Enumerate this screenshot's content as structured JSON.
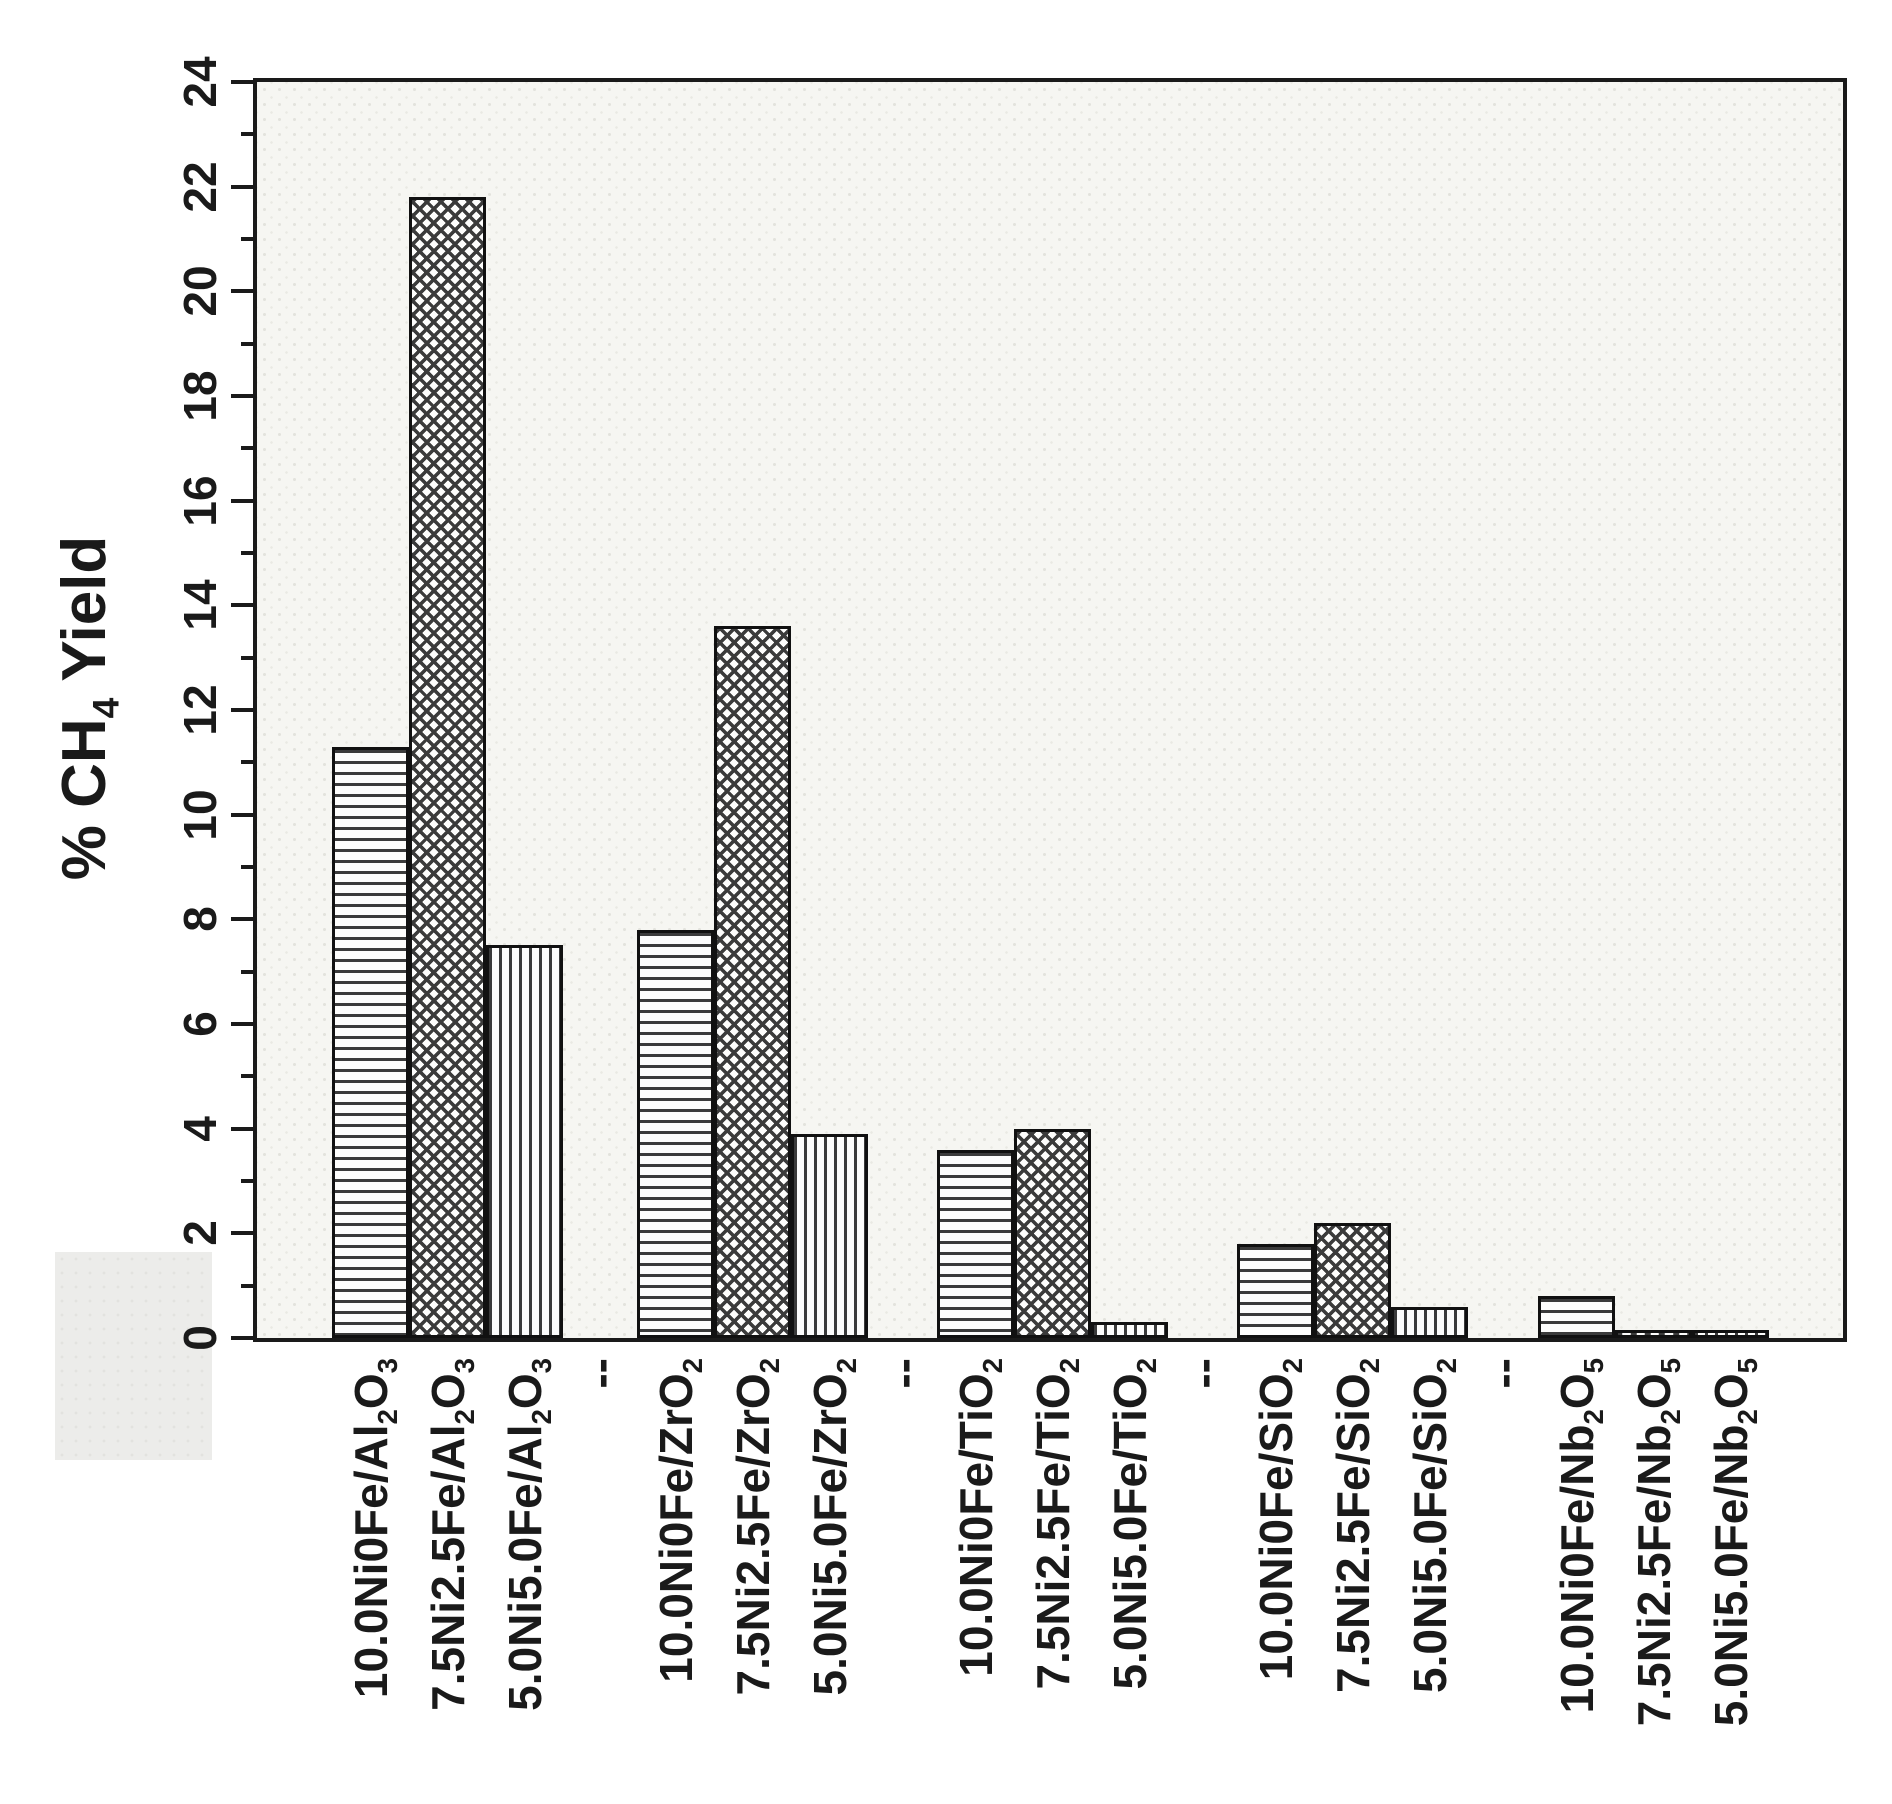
{
  "figure": {
    "background": "#ffffff",
    "plot_background": "#f6f6f2",
    "frame_color": "#1a1a1a",
    "bar_fill": "#fdfdfc",
    "hatch_color": "#3b3b3b"
  },
  "chart_data": {
    "type": "bar",
    "title": "",
    "ylabel": "% CH_4 Yield",
    "xlabel": "",
    "ylim": [
      0,
      24
    ],
    "ytick_step": 2,
    "minor_tick_step": 1,
    "grid": false,
    "legend": "none",
    "plot_style": "grouped bars, hatch-pattern filled, black frame on all four sides, rotated tick labels",
    "categories": [
      "Al_2O_3",
      "ZrO_2",
      "TiO_2",
      "SiO_2",
      "Nb_2O_5"
    ],
    "series": [
      {
        "name": "10.0Ni0Fe",
        "pattern": "horizontal-lines",
        "values": [
          11.3,
          7.8,
          3.6,
          1.8,
          0.8
        ]
      },
      {
        "name": "7.5Ni2.5Fe",
        "pattern": "crosshatch-checker",
        "values": [
          21.8,
          13.6,
          4.0,
          2.2,
          0.15
        ]
      },
      {
        "name": "5.0Ni5.0Fe",
        "pattern": "vertical-lines",
        "values": [
          7.5,
          3.9,
          0.3,
          0.6,
          0.15
        ]
      }
    ],
    "x_tick_labels": [
      "10.0Ni0Fe/Al_2O_3",
      "7.5Ni2.5Fe/Al_2O_3",
      "5.0Ni5.0Fe/Al_2O_3",
      "10.0Ni0Fe/ZrO_2",
      "7.5Ni2.5Fe/ZrO_2",
      "5.0Ni5.0Fe/ZrO_2",
      "10.0Ni0Fe/TiO_2",
      "7.5Ni2.5Fe/TiO_2",
      "5.0Ni5.0Fe/TiO_2",
      "10.0Ni0Fe/SiO_2",
      "7.5Ni2.5Fe/SiO_2",
      "5.0Ni5.0Fe/SiO_2",
      "10.0Ni0Fe/Nb_2O_5",
      "7.5Ni2.5Fe/Nb_2O_5",
      "5.0Ni5.0Fe/Nb_2O_5"
    ],
    "group_separator_label": "--",
    "y_tick_labels": [
      "0",
      "2",
      "4",
      "6",
      "8",
      "10",
      "12",
      "14",
      "16",
      "18",
      "20",
      "22",
      "24"
    ]
  }
}
